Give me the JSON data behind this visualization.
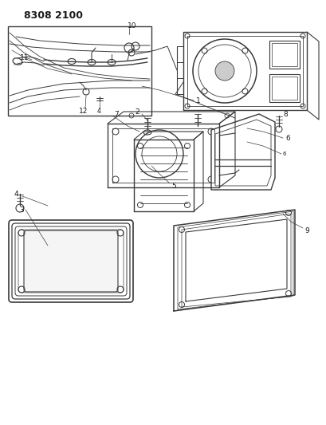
{
  "title_code": "8308 2100",
  "bg_color": "#ffffff",
  "line_color": "#3a3a3a",
  "label_color": "#1a1a1a",
  "fig_width": 4.1,
  "fig_height": 5.33,
  "dpi": 100
}
